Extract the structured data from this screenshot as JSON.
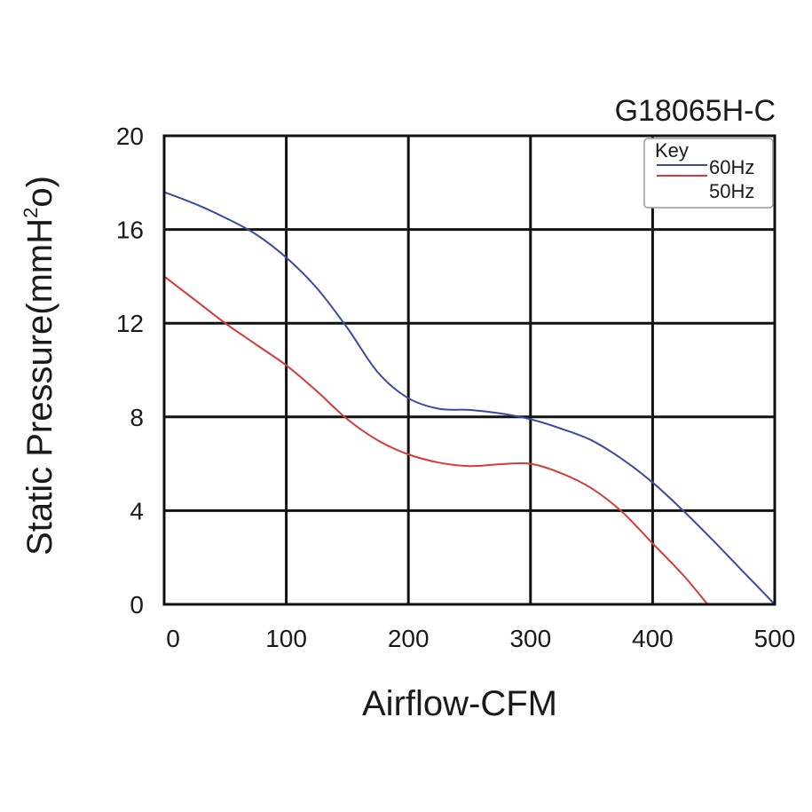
{
  "chart_data": {
    "type": "line",
    "title": "G18065H-C",
    "xlabel": "Airflow-CFM",
    "ylabel_main": "Static Pressure(mmH",
    "ylabel_sup": "2",
    "ylabel_tail": "o)",
    "xlim": [
      0,
      500
    ],
    "ylim": [
      0,
      20
    ],
    "x_ticks": [
      0,
      100,
      200,
      300,
      400,
      500
    ],
    "y_ticks": [
      0,
      4,
      8,
      12,
      16,
      20
    ],
    "grid": true,
    "legend": {
      "title": "Key",
      "placement": "top-right"
    },
    "series": [
      {
        "name": "60Hz",
        "color": "#3a4aa0",
        "points": [
          [
            0,
            17.6
          ],
          [
            25,
            17.1
          ],
          [
            50,
            16.5
          ],
          [
            75,
            15.8
          ],
          [
            100,
            14.8
          ],
          [
            125,
            13.5
          ],
          [
            150,
            11.8
          ],
          [
            175,
            9.9
          ],
          [
            200,
            8.8
          ],
          [
            225,
            8.35
          ],
          [
            250,
            8.3
          ],
          [
            275,
            8.15
          ],
          [
            300,
            7.9
          ],
          [
            325,
            7.5
          ],
          [
            350,
            7.0
          ],
          [
            375,
            6.2
          ],
          [
            400,
            5.2
          ],
          [
            425,
            4.0
          ],
          [
            450,
            2.7
          ],
          [
            475,
            1.35
          ],
          [
            500,
            0
          ]
        ]
      },
      {
        "name": "50Hz",
        "color": "#d83a3a",
        "points": [
          [
            0,
            14.0
          ],
          [
            25,
            13.0
          ],
          [
            50,
            12.0
          ],
          [
            75,
            11.1
          ],
          [
            100,
            10.2
          ],
          [
            125,
            9.1
          ],
          [
            150,
            7.9
          ],
          [
            175,
            7.0
          ],
          [
            200,
            6.4
          ],
          [
            225,
            6.05
          ],
          [
            250,
            5.9
          ],
          [
            275,
            5.98
          ],
          [
            300,
            6.0
          ],
          [
            325,
            5.6
          ],
          [
            350,
            4.95
          ],
          [
            375,
            3.95
          ],
          [
            400,
            2.6
          ],
          [
            425,
            1.25
          ],
          [
            445,
            0
          ]
        ]
      }
    ]
  }
}
